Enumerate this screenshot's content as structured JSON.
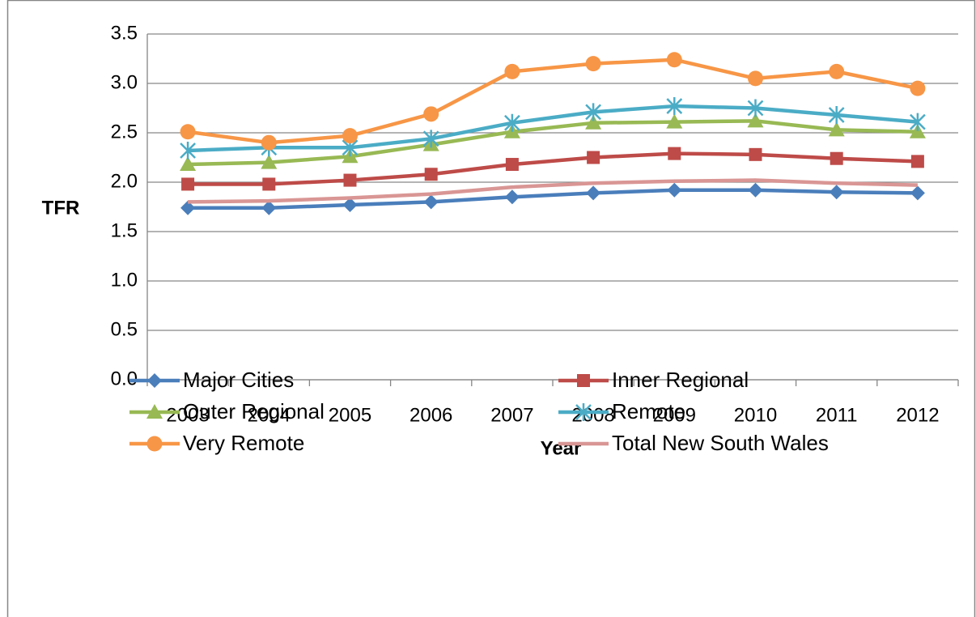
{
  "chart_data": {
    "type": "line",
    "x_label": "Year",
    "y_label": "TFR",
    "categories": [
      "2003",
      "2004",
      "2005",
      "2006",
      "2007",
      "2008",
      "2009",
      "2010",
      "2011",
      "2012"
    ],
    "series": [
      {
        "name": "Major Cities",
        "color": "#4a7ebb",
        "marker": "diamond",
        "values": [
          1.74,
          1.74,
          1.77,
          1.8,
          1.85,
          1.89,
          1.92,
          1.92,
          1.9,
          1.89
        ]
      },
      {
        "name": "Inner Regional",
        "color": "#be4b48",
        "marker": "square",
        "values": [
          1.98,
          1.98,
          2.02,
          2.08,
          2.18,
          2.25,
          2.29,
          2.28,
          2.24,
          2.21
        ]
      },
      {
        "name": "Outer Regional",
        "color": "#98b954",
        "marker": "triangle",
        "values": [
          2.18,
          2.2,
          2.26,
          2.38,
          2.51,
          2.6,
          2.61,
          2.62,
          2.53,
          2.51
        ]
      },
      {
        "name": "Remote",
        "color": "#4bacc6",
        "marker": "star",
        "values": [
          2.32,
          2.35,
          2.35,
          2.44,
          2.6,
          2.71,
          2.77,
          2.75,
          2.68,
          2.61
        ]
      },
      {
        "name": "Very Remote",
        "color": "#f79646",
        "marker": "circle",
        "values": [
          2.51,
          2.4,
          2.47,
          2.69,
          3.12,
          3.2,
          3.24,
          3.05,
          3.12,
          2.95
        ]
      },
      {
        "name": "Total New South Wales",
        "color": "#d99694",
        "marker": "none",
        "values": [
          1.8,
          1.81,
          1.84,
          1.88,
          1.95,
          1.99,
          2.01,
          2.02,
          1.99,
          1.97
        ]
      }
    ],
    "ylim": [
      0,
      3.5
    ],
    "yticks": [
      {
        "value": 0,
        "label": "0.0"
      },
      0.5,
      {
        "value": 1,
        "label": "1.0"
      },
      1.5,
      {
        "value": 2,
        "label": "2.0"
      },
      2.5,
      {
        "value": 3,
        "label": "3.0"
      },
      3.5
    ],
    "grid": true,
    "legend": "bottom"
  }
}
